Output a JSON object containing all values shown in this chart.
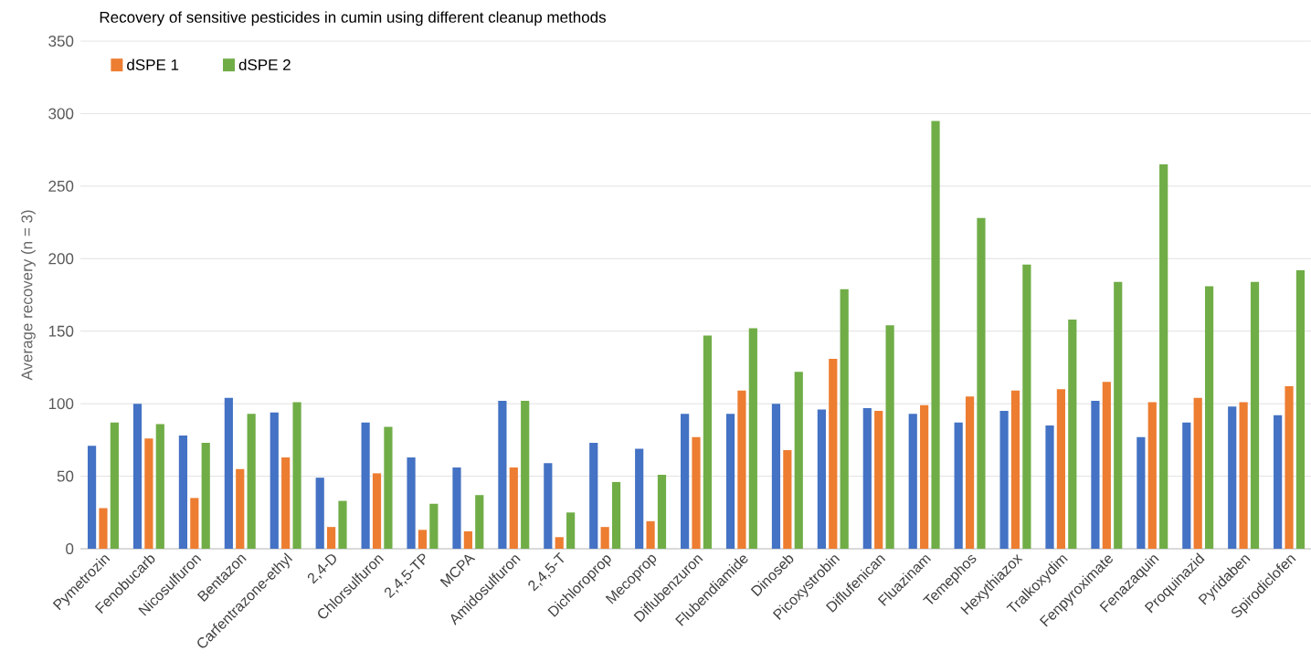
{
  "chart_data": {
    "type": "bar",
    "title": "Recovery of sensitive pesticides in cumin using different cleanup methods",
    "ylabel": "Average recovery (n = 3)",
    "categories": [
      "Pymetrozin",
      "Fenobucarb",
      "Nicosulfuron",
      "Bentazon",
      "Carfentrazone-ethyl",
      "2,4-D",
      "Chlorsulfuron",
      "2,4,5-TP",
      "MCPA",
      "Amidosulfuron",
      "2,4,5-T",
      "Dichloroprop",
      "Mecoprop",
      "Diflubenzuron",
      "Flubendiamide",
      "Dinoseb",
      "Picoxystrobin",
      "Diflufenican",
      "Fluazinam",
      "Temephos",
      "Hexythiazox",
      "Tralkoxydim",
      "Fenpyroximate",
      "Fenazaquin",
      "Proquinazid",
      "Pyridaben",
      "Spirodiclofen"
    ],
    "series": [
      {
        "color": "#4472c4",
        "values": [
          71,
          100,
          78,
          104,
          94,
          49,
          87,
          63,
          56,
          102,
          59,
          73,
          69,
          93,
          93,
          100,
          96,
          97,
          93,
          87,
          95,
          85,
          102,
          77,
          87,
          98,
          92
        ]
      },
      {
        "name": "dSPE 1",
        "color": "#ed7d31",
        "values": [
          28,
          76,
          35,
          55,
          63,
          15,
          52,
          13,
          12,
          56,
          8,
          15,
          19,
          77,
          109,
          68,
          131,
          95,
          99,
          105,
          109,
          110,
          115,
          101,
          104,
          101,
          112
        ]
      },
      {
        "name": "dSPE 2",
        "color": "#70ad47",
        "values": [
          87,
          86,
          73,
          93,
          101,
          33,
          84,
          31,
          37,
          102,
          25,
          46,
          51,
          147,
          152,
          122,
          179,
          154,
          295,
          228,
          196,
          158,
          184,
          265,
          181,
          184,
          192
        ]
      }
    ],
    "ylim": [
      0,
      350
    ],
    "yticks": [
      0,
      50,
      100,
      150,
      200,
      250,
      300,
      350
    ],
    "grid": "y",
    "legend": "top left"
  }
}
